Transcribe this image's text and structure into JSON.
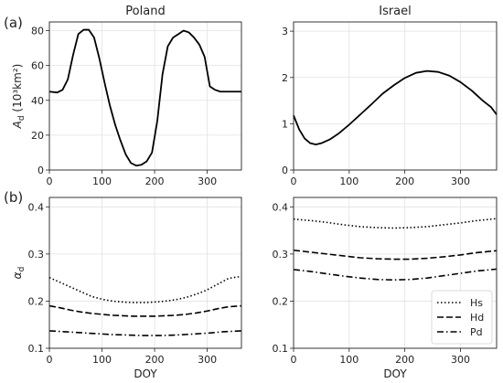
{
  "panel_labels": {
    "a": "(a)",
    "b": "(b)"
  },
  "chart_data": [
    {
      "id": "a-poland",
      "type": "line",
      "title": "Poland",
      "xlabel": "",
      "ylabel": "A_d (10³km²)",
      "xlim": [
        0,
        365
      ],
      "ylim": [
        0,
        85
      ],
      "xticks": [
        0,
        100,
        200,
        300
      ],
      "yticks": [
        0,
        20,
        40,
        60,
        80
      ],
      "grid": true,
      "series": [
        {
          "style": "solid",
          "x": [
            0,
            15,
            25,
            35,
            45,
            55,
            65,
            75,
            85,
            95,
            105,
            115,
            125,
            135,
            145,
            155,
            165,
            175,
            185,
            195,
            205,
            215,
            225,
            235,
            245,
            255,
            265,
            275,
            285,
            295,
            305,
            315,
            325,
            335,
            345,
            355,
            365
          ],
          "y": [
            45,
            44.5,
            46,
            52,
            66,
            78,
            80.5,
            80.5,
            76,
            64,
            50,
            37,
            26,
            17,
            9,
            4,
            2.5,
            3,
            5,
            10,
            28,
            55,
            71,
            76,
            78,
            80,
            79,
            76,
            72,
            65,
            48,
            46,
            45,
            45,
            45,
            45,
            45
          ]
        }
      ]
    },
    {
      "id": "a-israel",
      "type": "line",
      "title": "Israel",
      "xlabel": "",
      "ylabel": "",
      "xlim": [
        0,
        365
      ],
      "ylim": [
        0,
        3.2
      ],
      "xticks": [
        0,
        100,
        200,
        300
      ],
      "yticks": [
        0,
        1,
        2,
        3
      ],
      "grid": true,
      "series": [
        {
          "style": "solid",
          "x": [
            0,
            10,
            20,
            30,
            40,
            50,
            65,
            80,
            100,
            120,
            140,
            160,
            180,
            200,
            220,
            240,
            260,
            280,
            300,
            320,
            340,
            355,
            365
          ],
          "y": [
            1.18,
            0.88,
            0.68,
            0.58,
            0.55,
            0.58,
            0.66,
            0.78,
            0.98,
            1.2,
            1.42,
            1.65,
            1.83,
            1.99,
            2.1,
            2.14,
            2.12,
            2.04,
            1.9,
            1.72,
            1.5,
            1.36,
            1.2
          ]
        }
      ]
    },
    {
      "id": "b-poland",
      "type": "line",
      "title": "",
      "xlabel": "DOY",
      "ylabel": "α_d",
      "xlim": [
        0,
        365
      ],
      "ylim": [
        0.1,
        0.42
      ],
      "xticks": [
        0,
        100,
        200,
        300
      ],
      "yticks": [
        0.1,
        0.2,
        0.3,
        0.4
      ],
      "grid": true,
      "series": [
        {
          "name": "Hs",
          "style": "dotted",
          "x": [
            0,
            20,
            40,
            60,
            80,
            100,
            120,
            140,
            160,
            180,
            200,
            220,
            240,
            260,
            280,
            300,
            320,
            340,
            355,
            365
          ],
          "y": [
            0.25,
            0.24,
            0.23,
            0.22,
            0.21,
            0.204,
            0.2,
            0.198,
            0.197,
            0.197,
            0.198,
            0.2,
            0.203,
            0.208,
            0.215,
            0.224,
            0.236,
            0.248,
            0.251,
            0.252
          ]
        },
        {
          "name": "Hd",
          "style": "dashed",
          "x": [
            0,
            20,
            40,
            60,
            80,
            100,
            120,
            140,
            160,
            180,
            200,
            220,
            240,
            260,
            280,
            300,
            320,
            340,
            365
          ],
          "y": [
            0.19,
            0.186,
            0.181,
            0.177,
            0.174,
            0.172,
            0.17,
            0.169,
            0.168,
            0.168,
            0.168,
            0.169,
            0.17,
            0.172,
            0.175,
            0.179,
            0.184,
            0.188,
            0.19
          ]
        },
        {
          "name": "Pd",
          "style": "dashdot",
          "x": [
            0,
            30,
            60,
            90,
            120,
            150,
            180,
            210,
            240,
            270,
            300,
            330,
            365
          ],
          "y": [
            0.137,
            0.135,
            0.133,
            0.131,
            0.129,
            0.128,
            0.127,
            0.127,
            0.128,
            0.13,
            0.132,
            0.135,
            0.137
          ]
        }
      ]
    },
    {
      "id": "b-israel",
      "type": "line",
      "title": "",
      "xlabel": "DOY",
      "ylabel": "",
      "xlim": [
        0,
        365
      ],
      "ylim": [
        0.1,
        0.42
      ],
      "xticks": [
        0,
        100,
        200,
        300
      ],
      "yticks": [
        0.1,
        0.2,
        0.3,
        0.4
      ],
      "grid": true,
      "legend": "bottom-right",
      "series": [
        {
          "name": "Hs",
          "style": "dotted",
          "x": [
            0,
            30,
            60,
            90,
            120,
            150,
            180,
            210,
            240,
            270,
            300,
            330,
            365
          ],
          "y": [
            0.374,
            0.371,
            0.367,
            0.362,
            0.358,
            0.356,
            0.355,
            0.356,
            0.358,
            0.362,
            0.366,
            0.371,
            0.375
          ]
        },
        {
          "name": "Hd",
          "style": "dashed",
          "x": [
            0,
            30,
            60,
            90,
            120,
            150,
            180,
            210,
            240,
            270,
            300,
            330,
            365
          ],
          "y": [
            0.308,
            0.304,
            0.3,
            0.296,
            0.292,
            0.29,
            0.289,
            0.289,
            0.291,
            0.294,
            0.298,
            0.303,
            0.307
          ]
        },
        {
          "name": "Pd",
          "style": "dashdot",
          "x": [
            0,
            30,
            60,
            90,
            120,
            150,
            180,
            210,
            240,
            270,
            300,
            330,
            365
          ],
          "y": [
            0.267,
            0.263,
            0.258,
            0.253,
            0.249,
            0.246,
            0.245,
            0.246,
            0.249,
            0.254,
            0.259,
            0.264,
            0.268
          ]
        }
      ]
    }
  ]
}
